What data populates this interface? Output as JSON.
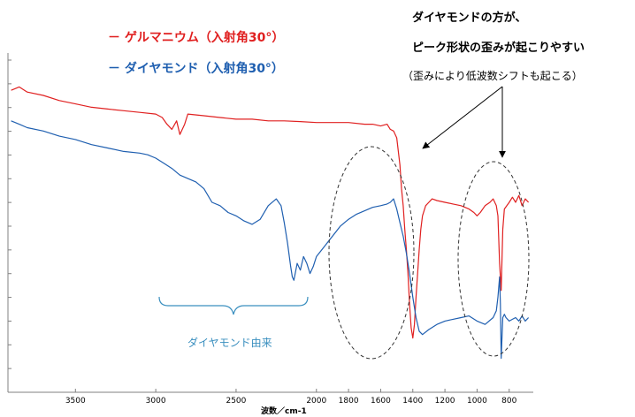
{
  "legend": {
    "dash": "－",
    "items": [
      {
        "label": "ゲルマニウム（入射角30°）",
        "color": "#e02020"
      },
      {
        "label": "ダイヤモンド（入射角30°）",
        "color": "#1f5fb0"
      }
    ]
  },
  "annotations": {
    "line1": "ダイヤモンドの方が、",
    "line2": "ピーク形状の歪みが起こりやすい",
    "line3": "（歪みにより低波数シフトも起こる）",
    "brace_label": "ダイヤモンド由来",
    "brace_color": "#3a8fbf"
  },
  "chart_data": {
    "type": "line",
    "xlabel": "波数／cm-1",
    "xlim": [
      3920,
      650
    ],
    "x_reversed": true,
    "x_ticks": [
      3500,
      3000,
      2500,
      2000,
      1800,
      1600,
      1400,
      1200,
      1000,
      800
    ],
    "y_tick_labels": false,
    "y_ticks_count": 14,
    "ylim": [
      0,
      100
    ],
    "grid": false,
    "series": [
      {
        "name": "ゲルマニウム（入射角30°）",
        "color": "#e02020",
        "x": [
          3900,
          3850,
          3800,
          3700,
          3600,
          3500,
          3400,
          3300,
          3200,
          3100,
          3000,
          2960,
          2930,
          2900,
          2870,
          2850,
          2820,
          2800,
          2700,
          2600,
          2500,
          2400,
          2300,
          2200,
          2100,
          2000,
          1900,
          1800,
          1700,
          1650,
          1600,
          1560,
          1540,
          1520,
          1500,
          1490,
          1480,
          1470,
          1460,
          1450,
          1440,
          1430,
          1420,
          1410,
          1400,
          1390,
          1380,
          1370,
          1360,
          1350,
          1340,
          1320,
          1300,
          1280,
          1250,
          1200,
          1150,
          1100,
          1050,
          1020,
          1000,
          980,
          950,
          920,
          900,
          880,
          870,
          860,
          850,
          840,
          830,
          800,
          780,
          760,
          740,
          720,
          700,
          680
        ],
        "values": [
          89,
          90,
          88.5,
          87.5,
          86,
          85,
          84,
          83.5,
          83,
          82.5,
          82,
          81,
          79,
          77.5,
          80,
          76,
          79,
          82,
          81.5,
          81,
          80.5,
          80.5,
          80,
          80,
          79.8,
          79.5,
          79.5,
          79.5,
          79,
          79,
          78.5,
          79,
          77.5,
          77,
          75,
          71,
          67,
          60,
          55,
          48,
          42,
          35,
          26,
          19,
          16,
          20,
          28,
          35,
          42,
          48,
          52,
          55,
          56,
          57,
          56.5,
          56,
          55.5,
          55,
          54,
          53,
          52,
          53,
          55,
          56,
          57,
          55,
          52,
          38,
          30,
          48,
          54,
          56,
          57.5,
          56,
          58,
          55,
          57,
          56
        ]
      },
      {
        "name": "ダイヤモンド（入射角30°）",
        "color": "#1f5fb0",
        "x": [
          3900,
          3850,
          3800,
          3700,
          3600,
          3500,
          3400,
          3300,
          3200,
          3100,
          3050,
          3000,
          2950,
          2900,
          2850,
          2800,
          2750,
          2700,
          2650,
          2600,
          2550,
          2500,
          2450,
          2400,
          2350,
          2300,
          2250,
          2220,
          2200,
          2180,
          2160,
          2150,
          2140,
          2120,
          2100,
          2080,
          2060,
          2040,
          2020,
          2000,
          1950,
          1900,
          1850,
          1800,
          1750,
          1700,
          1650,
          1600,
          1560,
          1540,
          1520,
          1500,
          1480,
          1460,
          1440,
          1420,
          1400,
          1380,
          1360,
          1340,
          1300,
          1250,
          1200,
          1150,
          1100,
          1050,
          1000,
          950,
          900,
          880,
          870,
          860,
          855,
          850,
          845,
          840,
          830,
          820,
          800,
          780,
          760,
          740,
          720,
          700,
          680
        ],
        "values": [
          80,
          79,
          78,
          77,
          75.5,
          74.5,
          73,
          72,
          71,
          70.5,
          70,
          69,
          67.5,
          66,
          64,
          63,
          62,
          60,
          56,
          55,
          53,
          52,
          50.5,
          49.5,
          51,
          55,
          57,
          55,
          50,
          44,
          37,
          34,
          33,
          38,
          36,
          40,
          38,
          35,
          37,
          40,
          43,
          46,
          49,
          51,
          52.5,
          53.5,
          54.5,
          55,
          55.5,
          56,
          57,
          54,
          50,
          46,
          41,
          35,
          28,
          22,
          18,
          17,
          18.5,
          20,
          21,
          21.5,
          22,
          22.5,
          21,
          20,
          22,
          24,
          28,
          34,
          26,
          10,
          16,
          22,
          23,
          22,
          21,
          21.5,
          22,
          21,
          22.5,
          21,
          22
        ]
      }
    ]
  }
}
